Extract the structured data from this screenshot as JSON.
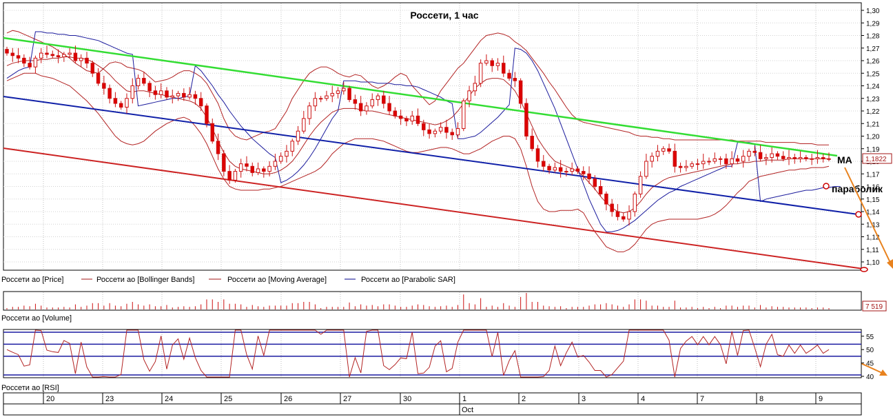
{
  "chart_data": {
    "type": "candlestick",
    "title": "Россети,  1 час",
    "price_axis": {
      "ticks": [
        "1,30",
        "1,29",
        "1,28",
        "1,27",
        "1,26",
        "1,25",
        "1,24",
        "1,23",
        "1,22",
        "1,21",
        "1,20",
        "1,19",
        "1,18",
        "1,17",
        "1,16",
        "1,15",
        "1,14",
        "1,13",
        "1,12",
        "1,11",
        "1,10"
      ],
      "ylim": [
        1.095,
        1.305
      ]
    },
    "last_price": "1,1822",
    "legend": [
      {
        "label": "Россети ао [Price]",
        "color": "#a31515"
      },
      {
        "label": "Россети ао [Bollinger Bands]",
        "color": "#a31515"
      },
      {
        "label": "Россети ао [Moving Average]",
        "color": "#a31515"
      },
      {
        "label": "Россети ао [Parabolic SAR]",
        "color": "#00008b"
      }
    ],
    "annotations": [
      "МА",
      "параболик"
    ],
    "volume": {
      "label": "Россети ао [Volume]",
      "last_value": "7 519"
    },
    "rsi": {
      "label": "Россети ао [RSI]",
      "ticks": [
        "55",
        "50",
        "45",
        "40"
      ],
      "ylim": [
        40,
        57
      ],
      "levels": [
        56.5,
        52,
        47.5,
        40.5
      ]
    },
    "date_axis": {
      "days": [
        "20",
        "23",
        "24",
        "25",
        "26",
        "27",
        "30",
        "1",
        "2",
        "3",
        "4",
        "7",
        "8",
        "9"
      ],
      "month": "Oct"
    },
    "closes": [
      1.266,
      1.264,
      1.262,
      1.258,
      1.255,
      1.262,
      1.266,
      1.265,
      1.264,
      1.263,
      1.265,
      1.266,
      1.26,
      1.262,
      1.258,
      1.25,
      1.242,
      1.238,
      1.23,
      1.226,
      1.223,
      1.23,
      1.24,
      1.246,
      1.242,
      1.236,
      1.233,
      1.236,
      1.231,
      1.232,
      1.234,
      1.231,
      1.233,
      1.23,
      1.224,
      1.21,
      1.196,
      1.186,
      1.172,
      1.165,
      1.172,
      1.178,
      1.176,
      1.171,
      1.174,
      1.172,
      1.176,
      1.18,
      1.184,
      1.188,
      1.196,
      1.204,
      1.214,
      1.224,
      1.23,
      1.23,
      1.232,
      1.234,
      1.236,
      1.238,
      1.229,
      1.226,
      1.22,
      1.224,
      1.229,
      1.232,
      1.226,
      1.22,
      1.216,
      1.214,
      1.212,
      1.216,
      1.21,
      1.205,
      1.202,
      1.204,
      1.207,
      1.203,
      1.201,
      1.206,
      1.228,
      1.236,
      1.242,
      1.258,
      1.26,
      1.256,
      1.258,
      1.25,
      1.246,
      1.244,
      1.226,
      1.2,
      1.19,
      1.18,
      1.176,
      1.173,
      1.175,
      1.172,
      1.172,
      1.174,
      1.172,
      1.17,
      1.166,
      1.16,
      1.154,
      1.146,
      1.14,
      1.136,
      1.134,
      1.14,
      1.154,
      1.168,
      1.18,
      1.184,
      1.188,
      1.19,
      1.188,
      1.176,
      1.175,
      1.176,
      1.178,
      1.178,
      1.18,
      1.18,
      1.182,
      1.182,
      1.178,
      1.182,
      1.18,
      1.184,
      1.188,
      1.187,
      1.182,
      1.183,
      1.186,
      1.184,
      1.182,
      1.183,
      1.182,
      1.183,
      1.182,
      1.182,
      1.183,
      1.182,
      1.182
    ],
    "bb_upper": [
      1.282,
      1.284,
      1.283,
      1.281,
      1.279,
      1.277,
      1.275,
      1.273,
      1.271,
      1.268,
      1.265,
      1.262,
      1.258,
      1.255,
      1.252,
      1.251,
      1.25,
      1.254,
      1.258,
      1.259,
      1.258,
      1.255,
      1.254,
      1.253,
      1.251,
      1.247,
      1.243,
      1.244,
      1.245,
      1.247,
      1.25,
      1.252,
      1.252,
      1.25,
      1.247,
      1.242,
      1.234,
      1.226,
      1.214,
      1.205,
      1.2,
      1.198,
      1.197,
      1.199,
      1.201,
      1.203,
      1.204,
      1.206,
      1.213,
      1.22,
      1.23,
      1.237,
      1.244,
      1.25,
      1.253,
      1.255,
      1.255,
      1.253,
      1.25,
      1.248,
      1.247,
      1.249,
      1.248,
      1.244,
      1.24,
      1.238,
      1.24,
      1.243,
      1.247,
      1.25,
      1.248,
      1.24,
      1.235,
      1.23,
      1.225,
      1.228,
      1.236,
      1.242,
      1.248,
      1.254,
      1.258,
      1.264,
      1.27,
      1.276,
      1.28,
      1.281,
      1.282,
      1.281,
      1.279,
      1.275,
      1.272,
      1.268,
      1.262,
      1.256,
      1.25,
      1.243,
      1.237,
      1.23,
      1.223,
      1.217,
      1.213,
      1.211,
      1.21,
      1.209,
      1.208,
      1.207,
      1.206,
      1.205,
      1.204,
      1.203,
      1.201,
      1.2,
      1.2,
      1.199,
      1.199,
      1.198,
      1.198,
      1.197,
      1.197,
      1.197,
      1.197,
      1.197,
      1.197,
      1.197,
      1.197,
      1.197,
      1.197,
      1.197,
      1.196,
      1.196,
      1.196,
      1.196,
      1.196,
      1.195,
      1.195,
      1.195,
      1.195,
      1.195,
      1.195,
      1.194,
      1.194,
      1.194,
      1.193,
      1.193,
      1.193
    ],
    "bb_lower": [
      1.244,
      1.246,
      1.248,
      1.25,
      1.25,
      1.25,
      1.248,
      1.247,
      1.246,
      1.244,
      1.242,
      1.24,
      1.236,
      1.232,
      1.228,
      1.223,
      1.218,
      1.212,
      1.206,
      1.2,
      1.196,
      1.194,
      1.193,
      1.194,
      1.196,
      1.2,
      1.204,
      1.207,
      1.21,
      1.212,
      1.214,
      1.215,
      1.213,
      1.208,
      1.202,
      1.194,
      1.184,
      1.174,
      1.166,
      1.16,
      1.158,
      1.157,
      1.157,
      1.157,
      1.157,
      1.158,
      1.158,
      1.159,
      1.16,
      1.162,
      1.164,
      1.166,
      1.168,
      1.17,
      1.172,
      1.175,
      1.18,
      1.186,
      1.19,
      1.194,
      1.196,
      1.198,
      1.198,
      1.198,
      1.198,
      1.197,
      1.196,
      1.194,
      1.192,
      1.19,
      1.188,
      1.187,
      1.187,
      1.188,
      1.189,
      1.19,
      1.191,
      1.191,
      1.19,
      1.188,
      1.186,
      1.186,
      1.188,
      1.19,
      1.193,
      1.196,
      1.198,
      1.2,
      1.2,
      1.198,
      1.19,
      1.176,
      1.16,
      1.148,
      1.142,
      1.14,
      1.14,
      1.141,
      1.141,
      1.141,
      1.142,
      1.139,
      1.131,
      1.124,
      1.118,
      1.112,
      1.11,
      1.108,
      1.108,
      1.11,
      1.114,
      1.12,
      1.126,
      1.13,
      1.132,
      1.133,
      1.134,
      1.134,
      1.134,
      1.134,
      1.134,
      1.134,
      1.135,
      1.136,
      1.138,
      1.141,
      1.145,
      1.15,
      1.155,
      1.159,
      1.164,
      1.166,
      1.168,
      1.169,
      1.17,
      1.171,
      1.172,
      1.173,
      1.173,
      1.174,
      1.174,
      1.175,
      1.175,
      1.175,
      1.176
    ],
    "moving_average": [
      1.256,
      1.258,
      1.259,
      1.26,
      1.26,
      1.26,
      1.261,
      1.261,
      1.262,
      1.262,
      1.263,
      1.263,
      1.262,
      1.262,
      1.261,
      1.259,
      1.256,
      1.253,
      1.249,
      1.244,
      1.24,
      1.236,
      1.235,
      1.236,
      1.236,
      1.235,
      1.234,
      1.233,
      1.232,
      1.231,
      1.23,
      1.229,
      1.228,
      1.226,
      1.222,
      1.215,
      1.206,
      1.196,
      1.187,
      1.18,
      1.176,
      1.174,
      1.173,
      1.172,
      1.171,
      1.17,
      1.17,
      1.171,
      1.173,
      1.176,
      1.18,
      1.186,
      1.193,
      1.2,
      1.206,
      1.211,
      1.215,
      1.219,
      1.221,
      1.222,
      1.222,
      1.222,
      1.221,
      1.22,
      1.22,
      1.219,
      1.218,
      1.217,
      1.216,
      1.215,
      1.214,
      1.213,
      1.212,
      1.211,
      1.21,
      1.209,
      1.21,
      1.212,
      1.215,
      1.22,
      1.226,
      1.232,
      1.238,
      1.242,
      1.245,
      1.246,
      1.246,
      1.245,
      1.241,
      1.236,
      1.228,
      1.218,
      1.208,
      1.198,
      1.191,
      1.185,
      1.18,
      1.178,
      1.176,
      1.174,
      1.172,
      1.168,
      1.163,
      1.158,
      1.152,
      1.147,
      1.143,
      1.14,
      1.139,
      1.14,
      1.143,
      1.148,
      1.154,
      1.159,
      1.162,
      1.165,
      1.167,
      1.168,
      1.169,
      1.17,
      1.171,
      1.172,
      1.173,
      1.174,
      1.175,
      1.176,
      1.177,
      1.178,
      1.178,
      1.179,
      1.179,
      1.18,
      1.18,
      1.181,
      1.181,
      1.181,
      1.181,
      1.182,
      1.182,
      1.182,
      1.182,
      1.182,
      1.182,
      1.182,
      1.182
    ],
    "parabolic_sar": [
      1.246,
      1.249,
      1.252,
      1.254,
      1.255,
      1.283,
      1.283,
      1.282,
      1.282,
      1.281,
      1.281,
      1.28,
      1.28,
      1.279,
      1.278,
      1.277,
      1.276,
      1.274,
      1.272,
      1.27,
      1.268,
      1.266,
      1.265,
      1.224,
      1.225,
      1.226,
      1.227,
      1.228,
      1.229,
      1.23,
      1.23,
      1.231,
      1.232,
      1.256,
      1.252,
      1.246,
      1.24,
      1.233,
      1.227,
      1.22,
      1.214,
      1.208,
      1.203,
      1.198,
      1.194,
      1.19,
      1.186,
      1.183,
      1.163,
      1.165,
      1.168,
      1.172,
      1.177,
      1.183,
      1.19,
      1.198,
      1.206,
      1.214,
      1.22,
      1.244,
      1.244,
      1.244,
      1.243,
      1.243,
      1.243,
      1.242,
      1.242,
      1.242,
      1.241,
      1.241,
      1.24,
      1.24,
      1.239,
      1.237,
      1.235,
      1.233,
      1.231,
      1.228,
      1.226,
      1.198,
      1.198,
      1.199,
      1.2,
      1.203,
      1.207,
      1.211,
      1.215,
      1.22,
      1.225,
      1.27,
      1.269,
      1.266,
      1.26,
      1.252,
      1.242,
      1.232,
      1.222,
      1.21,
      1.198,
      1.186,
      1.174,
      1.162,
      1.15,
      1.14,
      1.13,
      1.124,
      1.124,
      1.125,
      1.127,
      1.13,
      1.133,
      1.137,
      1.141,
      1.145,
      1.149,
      1.152,
      1.155,
      1.157,
      1.16,
      1.162,
      1.164,
      1.166,
      1.168,
      1.17,
      1.172,
      1.174,
      1.176,
      1.176,
      1.195,
      1.195,
      1.195,
      1.194,
      1.148,
      1.15,
      1.151,
      1.152,
      1.153,
      1.154,
      1.155,
      1.156,
      1.157,
      1.157,
      1.158,
      1.159,
      1.159,
      1.16,
      1.16
    ]
  }
}
